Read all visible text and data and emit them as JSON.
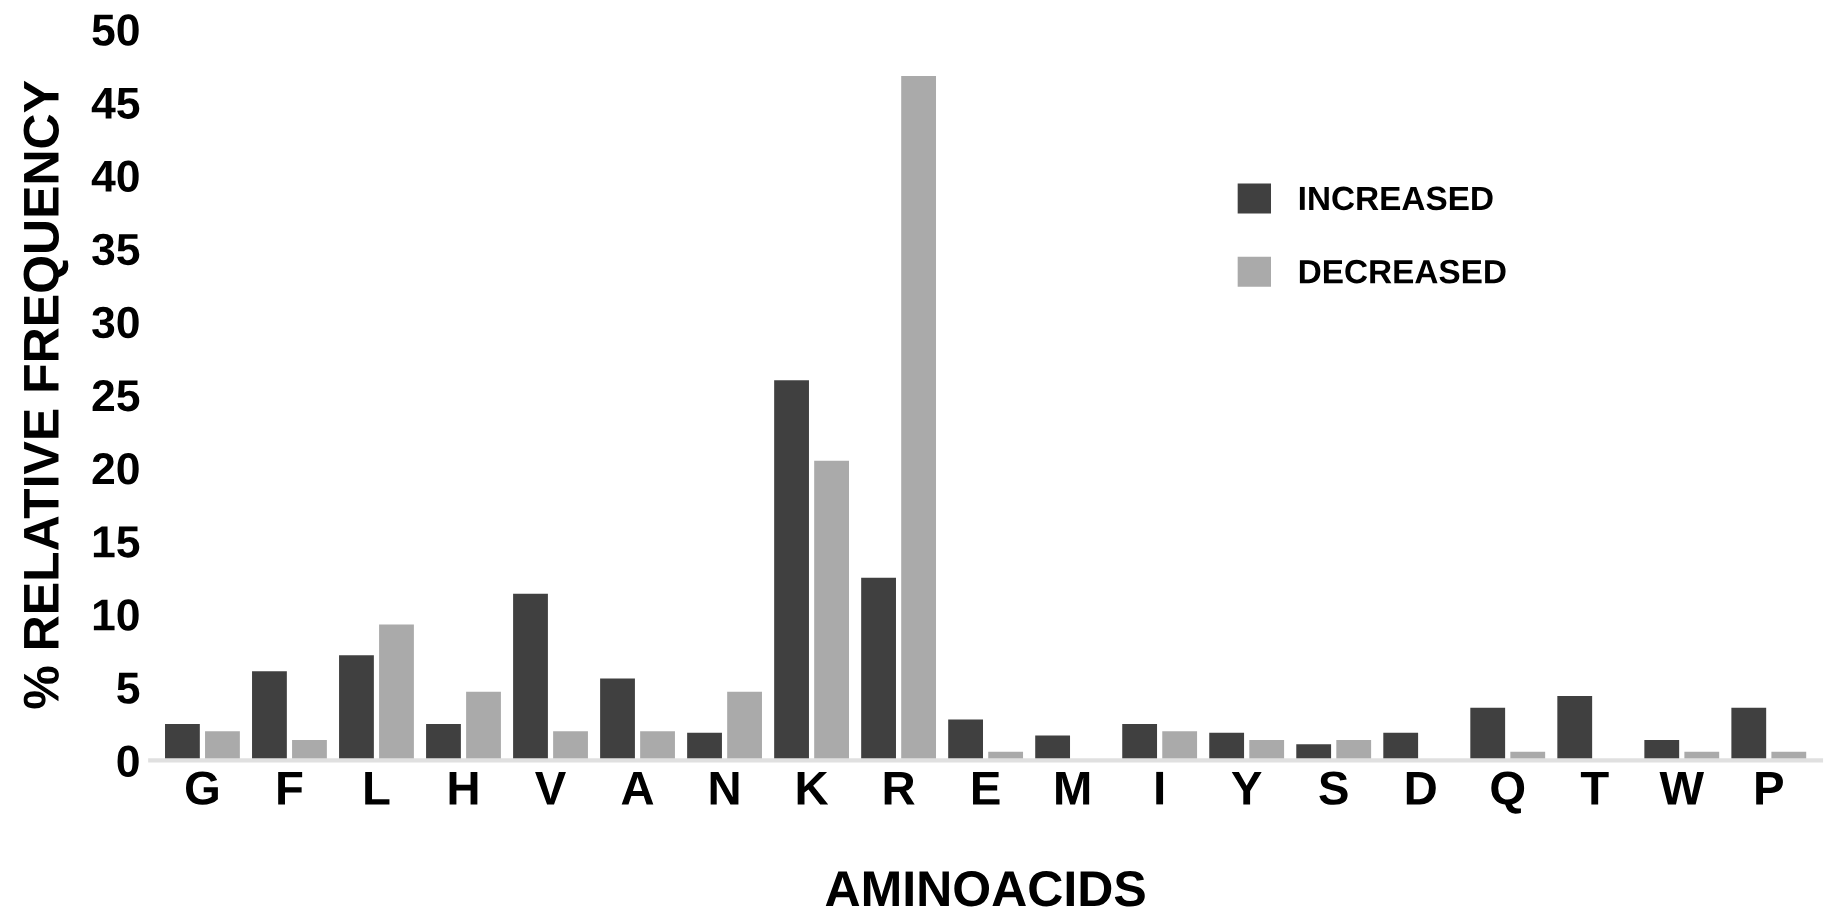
{
  "chart_data": {
    "type": "bar",
    "xlabel": "AMINOACIDS",
    "ylabel": "% RELATIVE FREQUENCY",
    "categories": [
      "G",
      "F",
      "L",
      "H",
      "V",
      "A",
      "N",
      "K",
      "R",
      "E",
      "M",
      "I",
      "Y",
      "S",
      "D",
      "Q",
      "T",
      "W",
      "P"
    ],
    "series": [
      {
        "name": "INCREASED",
        "color": "#404040",
        "values": [
          2.5,
          6.1,
          7.2,
          2.5,
          11.4,
          5.6,
          1.9,
          26.0,
          12.5,
          2.8,
          1.7,
          2.5,
          1.9,
          1.1,
          1.9,
          3.6,
          4.4,
          1.4,
          3.6
        ]
      },
      {
        "name": "DECREASED",
        "color": "#aaaaaa",
        "values": [
          2.0,
          1.4,
          9.3,
          4.7,
          2.0,
          2.0,
          4.7,
          20.5,
          46.8,
          0.6,
          0,
          2.0,
          1.4,
          1.4,
          0,
          0.6,
          0,
          0.6,
          0.6
        ]
      }
    ],
    "ylim": [
      0,
      50
    ],
    "yticks": [
      0,
      5,
      10,
      15,
      20,
      25,
      30,
      35,
      40,
      45,
      50
    ],
    "grid": false,
    "legend": "top right"
  }
}
